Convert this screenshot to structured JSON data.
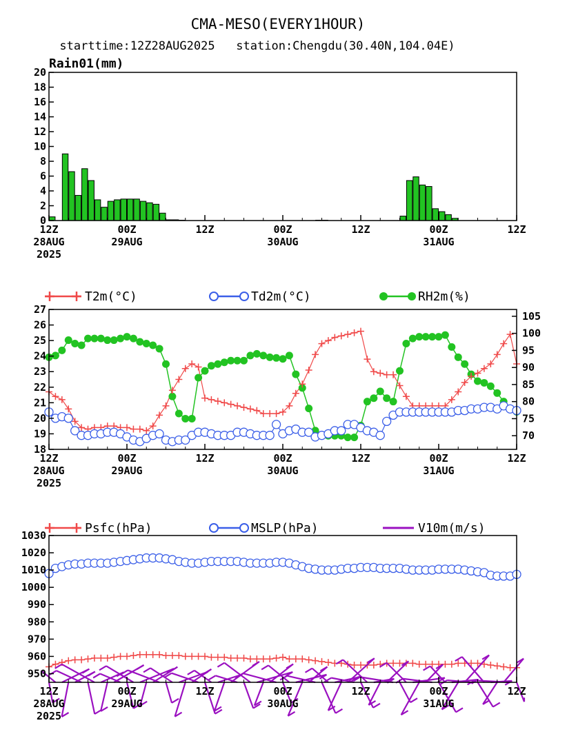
{
  "header": {
    "title": "CMA-MESO(EVERY1HOUR)",
    "subtitle": "starttime:12Z28AUG2025   station:Chengdu(30.40N,104.04E)"
  },
  "colors": {
    "rain": "#22c322",
    "t2m": "#f04848",
    "td2m": "#3a5ee8",
    "rh2m": "#22c322",
    "psfc": "#f04848",
    "mslp": "#3a5ee8",
    "v10m": "#9a10c0"
  },
  "x_axis": {
    "ticks": [
      {
        "h": 0,
        "l1": "12Z",
        "l2": "28AUG",
        "l3": "2025"
      },
      {
        "h": 12,
        "l1": "00Z",
        "l2": "29AUG",
        "l3": ""
      },
      {
        "h": 24,
        "l1": "12Z",
        "l2": "",
        "l3": ""
      },
      {
        "h": 36,
        "l1": "00Z",
        "l2": "30AUG",
        "l3": ""
      },
      {
        "h": 48,
        "l1": "12Z",
        "l2": "",
        "l3": ""
      },
      {
        "h": 60,
        "l1": "00Z",
        "l2": "31AUG",
        "l3": ""
      },
      {
        "h": 72,
        "l1": "12Z",
        "l2": "",
        "l3": ""
      }
    ]
  },
  "chart_data": [
    {
      "type": "bar",
      "title": "Rain01(mm)",
      "ylim": [
        0,
        20
      ],
      "yticks": [
        0,
        2,
        4,
        6,
        8,
        10,
        12,
        14,
        16,
        18,
        20
      ],
      "x_hours": [
        0,
        1,
        2,
        3,
        4,
        5,
        6,
        7,
        8,
        9,
        10,
        11,
        12,
        13,
        14,
        15,
        16,
        17,
        18,
        19,
        20,
        21,
        22,
        23,
        24,
        25,
        26,
        27,
        28,
        29,
        30,
        31,
        32,
        33,
        34,
        35,
        36,
        37,
        38,
        39,
        40,
        41,
        42,
        43,
        44,
        45,
        46,
        47,
        48,
        49,
        50,
        51,
        52,
        53,
        54,
        55,
        56,
        57,
        58,
        59,
        60,
        61,
        62,
        63,
        64,
        65,
        66,
        67,
        68,
        69,
        70,
        71,
        72
      ],
      "series": [
        {
          "name": "Rain01",
          "values": [
            0.5,
            0,
            9.0,
            6.6,
            3.4,
            7.0,
            5.4,
            2.8,
            1.8,
            2.6,
            2.8,
            2.9,
            2.9,
            2.9,
            2.6,
            2.4,
            2.2,
            1.0,
            0.1,
            0.1,
            0.05,
            0,
            0,
            0,
            0,
            0,
            0,
            0,
            0,
            0,
            0,
            0,
            0,
            0,
            0,
            0,
            0,
            0,
            0,
            0,
            0,
            0.05,
            0.05,
            0,
            0,
            0,
            0,
            0,
            0,
            0,
            0,
            0,
            0,
            0,
            0.6,
            5.4,
            5.9,
            4.8,
            4.6,
            1.6,
            1.2,
            0.8,
            0.3,
            0,
            0,
            0,
            0,
            0,
            0,
            0,
            0,
            0,
            0
          ]
        }
      ]
    },
    {
      "type": "line",
      "ylim_left": [
        18,
        27
      ],
      "yticks_left": [
        18,
        19,
        20,
        21,
        22,
        23,
        24,
        25,
        26,
        27
      ],
      "ylim_right": [
        66,
        107
      ],
      "yticks_right": [
        70,
        75,
        80,
        85,
        90,
        95,
        100,
        105
      ],
      "series": [
        {
          "name": "T2m(°C)",
          "axis": "left",
          "marker": "plus",
          "values": [
            21.7,
            21.4,
            21.2,
            20.6,
            19.8,
            19.4,
            19.3,
            19.4,
            19.4,
            19.5,
            19.5,
            19.4,
            19.4,
            19.3,
            19.3,
            19.2,
            19.5,
            20.2,
            20.8,
            21.8,
            22.5,
            23.2,
            23.5,
            23.3,
            21.3,
            21.2,
            21.1,
            21.0,
            20.9,
            20.8,
            20.7,
            20.6,
            20.5,
            20.3,
            20.3,
            20.3,
            20.4,
            20.8,
            21.6,
            22.2,
            23.1,
            24.1,
            24.8,
            25.0,
            25.2,
            25.3,
            25.4,
            25.5,
            25.6,
            23.8,
            23.0,
            22.9,
            22.8,
            22.8,
            22.1,
            21.4,
            20.8,
            20.8,
            20.8,
            20.8,
            20.8,
            20.8,
            21.2,
            21.7,
            22.3,
            22.7,
            22.9,
            23.2,
            23.5,
            24.1,
            24.8,
            25.4,
            23.5
          ]
        },
        {
          "name": "Td2m(°C)",
          "axis": "left",
          "marker": "circle",
          "values": [
            20.4,
            20.0,
            20.1,
            20.0,
            19.2,
            18.9,
            18.9,
            19.0,
            19.0,
            19.1,
            19.1,
            19.0,
            18.8,
            18.6,
            18.5,
            18.7,
            18.9,
            19.0,
            18.6,
            18.5,
            18.6,
            18.6,
            18.9,
            19.1,
            19.1,
            19.0,
            18.9,
            18.9,
            18.9,
            19.1,
            19.1,
            19.0,
            18.9,
            18.9,
            18.9,
            19.6,
            19.0,
            19.2,
            19.3,
            19.1,
            19.1,
            18.8,
            18.9,
            19.0,
            19.2,
            19.2,
            19.6,
            19.6,
            19.4,
            19.2,
            19.1,
            18.9,
            19.8,
            20.2,
            20.4,
            20.4,
            20.4,
            20.4,
            20.4,
            20.4,
            20.4,
            20.4,
            20.4,
            20.5,
            20.5,
            20.6,
            20.6,
            20.7,
            20.7,
            20.6,
            20.8,
            20.6,
            20.5
          ]
        },
        {
          "name": "RH2m(%)",
          "axis": "right",
          "marker": "dot",
          "values": [
            93,
            93.5,
            95,
            98,
            97,
            96.5,
            98.5,
            98.5,
            98.5,
            98,
            98,
            98.5,
            99,
            98.5,
            97.5,
            97,
            96.5,
            95.5,
            91,
            81.5,
            76.5,
            75,
            75,
            87,
            89,
            90.5,
            91,
            91.5,
            92,
            92,
            92,
            93.5,
            94,
            93.5,
            93,
            92.8,
            92.5,
            93.5,
            88,
            84,
            78,
            71.5,
            70,
            70,
            70,
            70,
            69.5,
            69.5,
            73,
            80,
            81,
            83,
            81,
            80,
            89,
            97,
            98.5,
            99,
            99,
            99,
            99,
            99.5,
            96,
            93,
            91,
            88,
            86,
            85.5,
            84.5,
            82.5,
            80,
            78,
            77
          ]
        }
      ]
    },
    {
      "type": "line",
      "ylim": [
        945,
        1030
      ],
      "yticks": [
        950,
        960,
        970,
        980,
        990,
        1000,
        1010,
        1020,
        1030
      ],
      "series": [
        {
          "name": "Psfc(hPa)",
          "marker": "plus",
          "values": [
            954,
            955.5,
            956.5,
            957.5,
            958,
            958,
            958.5,
            959,
            959,
            959,
            959.5,
            960,
            960,
            960.5,
            961,
            961,
            961,
            961,
            960.5,
            960.5,
            960.5,
            960,
            960,
            960,
            960,
            959.5,
            959.5,
            959.5,
            959,
            959,
            959,
            958.5,
            958.5,
            958.5,
            958.5,
            959,
            959.5,
            958.5,
            958.5,
            958.5,
            958,
            957.5,
            957,
            956.5,
            956,
            956,
            955.5,
            955,
            955,
            955,
            955,
            955.5,
            956,
            956,
            956,
            956,
            956,
            955.5,
            955.5,
            955.5,
            955.5,
            955.5,
            955.5,
            956,
            956,
            956,
            956,
            955.5,
            955,
            954.5,
            954,
            953.5,
            953.5
          ]
        },
        {
          "name": "MSLP(hPa)",
          "marker": "circle",
          "values": [
            1008,
            1011,
            1012,
            1013,
            1013.5,
            1013.5,
            1014,
            1014,
            1014,
            1014,
            1014.5,
            1015,
            1015.5,
            1016,
            1016.5,
            1017,
            1017,
            1017,
            1016.5,
            1016,
            1015,
            1014.5,
            1014,
            1014,
            1014.5,
            1015,
            1015,
            1015,
            1015,
            1015,
            1014.5,
            1014,
            1014,
            1014,
            1014,
            1014.5,
            1014.5,
            1014,
            1013,
            1012,
            1011,
            1010.5,
            1010,
            1010,
            1010,
            1010.5,
            1011,
            1011,
            1011.5,
            1011.5,
            1011.5,
            1011,
            1011,
            1011,
            1011,
            1010.5,
            1010,
            1010,
            1010,
            1010,
            1010.5,
            1010.5,
            1010.5,
            1010.5,
            1010,
            1009.5,
            1009,
            1008.5,
            1007,
            1006.5,
            1006.5,
            1006.5,
            1007.5
          ]
        },
        {
          "name": "V10m(m/s)",
          "marker": "barb"
        }
      ]
    }
  ]
}
